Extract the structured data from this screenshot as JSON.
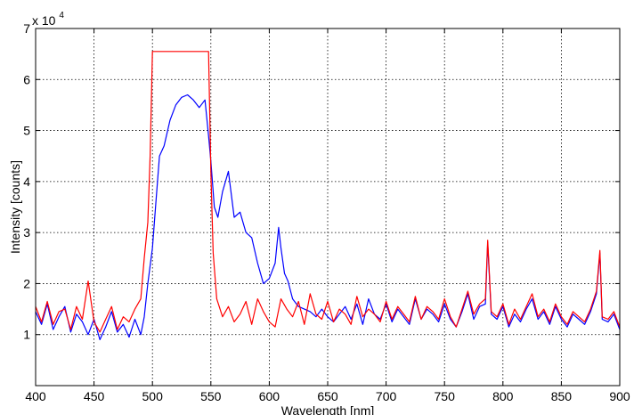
{
  "chart_data": {
    "type": "line",
    "title": "",
    "xlabel": "Wavelength [nm]",
    "ylabel": "Intensity [counts]",
    "y_multiplier_label": "x 10",
    "y_multiplier_exponent": "4",
    "xlim": [
      400,
      900
    ],
    "ylim": [
      0,
      70000
    ],
    "x_ticks": [
      400,
      450,
      500,
      550,
      600,
      650,
      700,
      750,
      800,
      850,
      900
    ],
    "y_ticks": [
      0,
      10000,
      20000,
      30000,
      40000,
      50000,
      60000,
      70000
    ],
    "x_tick_labels": [
      "400",
      "450",
      "500",
      "550",
      "600",
      "650",
      "700",
      "750",
      "800",
      "850",
      "900"
    ],
    "y_tick_labels": [
      "",
      "1",
      "2",
      "3",
      "4",
      "5",
      "6",
      "7"
    ],
    "grid": true,
    "series": [
      {
        "color": "#0000ff",
        "x": [
          400,
          405,
          410,
          415,
          420,
          425,
          430,
          435,
          440,
          445,
          450,
          455,
          460,
          465,
          470,
          475,
          480,
          485,
          490,
          493,
          496,
          500,
          503,
          506,
          510,
          515,
          520,
          525,
          530,
          535,
          540,
          545,
          548,
          550,
          553,
          556,
          560,
          565,
          570,
          575,
          580,
          585,
          590,
          595,
          600,
          605,
          608,
          610,
          613,
          616,
          620,
          625,
          630,
          635,
          640,
          645,
          650,
          655,
          660,
          665,
          670,
          675,
          680,
          685,
          690,
          695,
          700,
          705,
          710,
          715,
          720,
          725,
          730,
          735,
          740,
          745,
          750,
          755,
          760,
          765,
          770,
          775,
          780,
          785,
          787,
          790,
          795,
          800,
          805,
          810,
          815,
          820,
          825,
          830,
          835,
          840,
          845,
          850,
          855,
          860,
          865,
          870,
          875,
          880,
          883,
          885,
          890,
          895,
          900
        ],
        "y": [
          14500,
          12000,
          16000,
          11000,
          13500,
          15500,
          10500,
          14000,
          12500,
          10000,
          13000,
          9000,
          11500,
          14500,
          10500,
          12000,
          9500,
          13000,
          10000,
          13500,
          20000,
          27000,
          36000,
          45000,
          47000,
          52000,
          55000,
          56500,
          57000,
          56000,
          54500,
          56000,
          49000,
          44000,
          35000,
          33000,
          38000,
          42000,
          33000,
          34000,
          30000,
          29000,
          24000,
          20000,
          21000,
          24000,
          31000,
          27000,
          22000,
          20500,
          17000,
          15500,
          15000,
          14500,
          13500,
          15000,
          13500,
          12500,
          14000,
          15500,
          13000,
          16000,
          12000,
          17000,
          14000,
          13000,
          16000,
          12500,
          15000,
          13500,
          12000,
          17000,
          13000,
          15000,
          14000,
          12500,
          16000,
          13000,
          11500,
          14500,
          18000,
          13000,
          15500,
          16000,
          28000,
          14000,
          13000,
          15500,
          11500,
          14000,
          12500,
          15000,
          17000,
          13000,
          14500,
          12000,
          15500,
          13000,
          11500,
          14000,
          13000,
          12000,
          14500,
          18000,
          26000,
          13000,
          12500,
          14000,
          11000
        ]
      },
      {
        "color": "#ff0000",
        "x": [
          400,
          405,
          410,
          415,
          420,
          425,
          430,
          435,
          440,
          445,
          450,
          455,
          460,
          465,
          470,
          475,
          480,
          485,
          490,
          493,
          496,
          498,
          500,
          520,
          540,
          548,
          550,
          552,
          555,
          560,
          565,
          570,
          575,
          580,
          585,
          590,
          595,
          600,
          605,
          610,
          615,
          620,
          625,
          630,
          635,
          640,
          645,
          650,
          655,
          660,
          665,
          670,
          675,
          680,
          685,
          690,
          695,
          700,
          705,
          710,
          715,
          720,
          725,
          730,
          735,
          740,
          745,
          750,
          755,
          760,
          765,
          770,
          775,
          780,
          785,
          787,
          790,
          795,
          800,
          805,
          810,
          815,
          820,
          825,
          830,
          835,
          840,
          845,
          850,
          855,
          860,
          865,
          870,
          875,
          880,
          883,
          885,
          890,
          895,
          900
        ],
        "y": [
          15500,
          12500,
          16500,
          12000,
          14500,
          15000,
          11000,
          15500,
          13000,
          20500,
          12500,
          10500,
          13000,
          15500,
          11000,
          13500,
          12500,
          15000,
          17000,
          25000,
          32000,
          45000,
          65500,
          65500,
          65500,
          65500,
          42000,
          26000,
          17000,
          13500,
          15500,
          12500,
          14000,
          16500,
          12000,
          17000,
          14500,
          12500,
          11500,
          17000,
          15000,
          13500,
          16500,
          12000,
          18000,
          14000,
          13000,
          16500,
          12500,
          15000,
          14000,
          12000,
          17500,
          13500,
          15000,
          14000,
          12500,
          16500,
          13000,
          15500,
          14000,
          12500,
          17500,
          13000,
          15500,
          14500,
          13000,
          17000,
          13500,
          11500,
          15000,
          18500,
          14000,
          16000,
          17000,
          28500,
          14500,
          13500,
          16000,
          12000,
          15000,
          13000,
          15500,
          18000,
          13500,
          15000,
          12500,
          16000,
          13500,
          12000,
          14500,
          13500,
          12500,
          15000,
          18500,
          26500,
          13500,
          13000,
          14500,
          11500
        ]
      }
    ]
  }
}
